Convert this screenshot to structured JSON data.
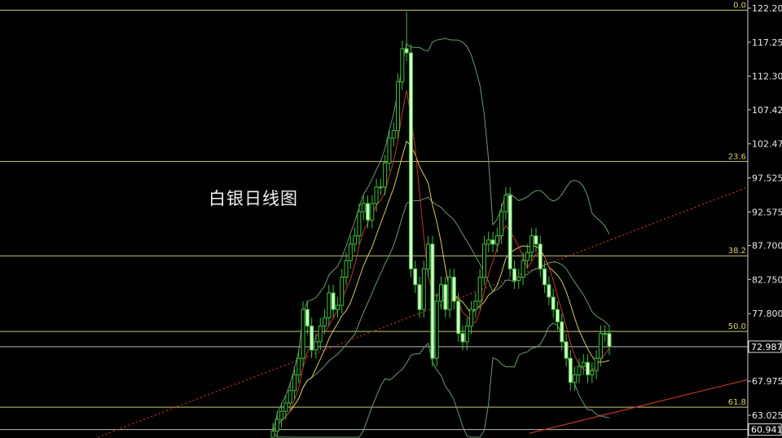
{
  "chart_data": {
    "type": "candlestick",
    "title": "白银日线图",
    "ylim": [
      60.4,
      122.8
    ],
    "y_ticks": [
      "122.200",
      "117.250",
      "112.300",
      "107.425",
      "102.475",
      "97.525",
      "92.575",
      "87.700",
      "82.750",
      "77.800",
      "67.975",
      "63.025"
    ],
    "current_price": {
      "label": "72.987",
      "value": 72.987
    },
    "low_marker": {
      "label": "60.941",
      "value": 60.941
    },
    "fib_levels": [
      {
        "label": "0.0",
        "value": 121.9
      },
      {
        "label": "23.6",
        "value": 99.9
      },
      {
        "label": "38.2",
        "value": 86.2
      },
      {
        "label": "50.0",
        "value": 75.2
      },
      {
        "label": "61.8",
        "value": 64.2
      }
    ],
    "closes": [
      60.7,
      62.4,
      63.6,
      64.8,
      66.6,
      68.9,
      71.3,
      78.4,
      76.0,
      72.5,
      73.7,
      76.0,
      77.2,
      80.8,
      78.4,
      79.0,
      83.1,
      85.5,
      87.9,
      89.1,
      92.6,
      93.8,
      91.4,
      93.8,
      96.2,
      96.2,
      99.7,
      103.3,
      104.4,
      111.5,
      116.3,
      115.7,
      84.3,
      82.0,
      78.4,
      84.3,
      87.9,
      71.3,
      79.6,
      82.0,
      78.4,
      83.1,
      79.6,
      74.9,
      73.7,
      76.0,
      78.4,
      79.6,
      83.1,
      87.9,
      88.5,
      87.9,
      89.1,
      92.6,
      95.0,
      84.3,
      82.6,
      83.1,
      85.5,
      86.7,
      89.1,
      87.9,
      84.3,
      82.0,
      80.2,
      78.4,
      76.6,
      73.7,
      71.3,
      67.8,
      68.9,
      70.1,
      70.7,
      68.9,
      69.5,
      71.3,
      74.9,
      74.9,
      73.0
    ],
    "peak_high": 121.7,
    "trendlines": [
      {
        "style": "dotted",
        "from_price": 59.7,
        "to_price": 96.2
      },
      {
        "style": "solid",
        "from_price": 60.4,
        "to_price": 68.2
      }
    ],
    "colors": {
      "background": "#000000",
      "candle": "#3fbf3f",
      "candle_fill": "#d8ffc8",
      "fib": "#c8c878",
      "fib_label": "#d8d060",
      "ma_short": "#c0392b",
      "ma_long": "#d8c860",
      "bollinger": "#6a9a6a",
      "trendline": "#c0392b",
      "axis_text": "#e8e8e8"
    }
  }
}
